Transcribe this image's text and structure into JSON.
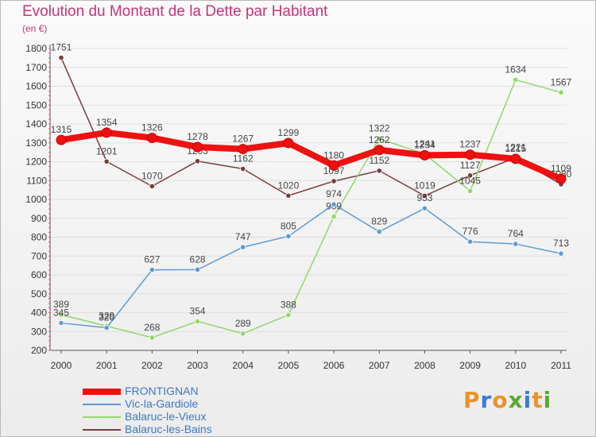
{
  "header": {
    "title": "Evolution du Montant de la Dette par Habitant",
    "subtitle": "(en €)"
  },
  "logo": {
    "text": "Proxiti"
  },
  "colors": {
    "title": "#c8337a",
    "legend_text": "#3b78c2",
    "grid": "#e0e0e0",
    "axis": "#555555"
  },
  "chart_data": {
    "type": "line",
    "title": "Evolution du Montant de la Dette par Habitant",
    "subtitle": "(en €)",
    "xlabel": "",
    "ylabel": "",
    "x": [
      "2000",
      "2001",
      "2002",
      "2003",
      "2004",
      "2005",
      "2006",
      "2007",
      "2008",
      "2009",
      "2010",
      "2011"
    ],
    "ylim": [
      200,
      1800
    ],
    "yticks": [
      "200",
      "300",
      "400",
      "500",
      "600",
      "700",
      "800",
      "900",
      "1000",
      "1100",
      "1200",
      "1300",
      "1400",
      "1500",
      "1600",
      "1700",
      "1800"
    ],
    "grid": "horizontal",
    "legend_position": "bottom-left",
    "series": [
      {
        "name": "FRONTIGNAN",
        "color": "#ee1111",
        "values": [
          1315,
          1354,
          1326,
          1278,
          1267,
          1299,
          1180,
          1262,
          1234,
          1237,
          1215,
          1109
        ],
        "labels": [
          "1315",
          "1354",
          "1326",
          "1278",
          "1267",
          "1299",
          "1180",
          "1262",
          "1234",
          "1237",
          "1215",
          "1109"
        ]
      },
      {
        "name": "Vic-la-Gardiole",
        "color": "#5b9bd5",
        "values": [
          345,
          320,
          627,
          628,
          747,
          805,
          974,
          829,
          953,
          776,
          764,
          713
        ],
        "labels": [
          "345",
          "320",
          "627",
          "628",
          "747",
          "805",
          "974",
          "829",
          "953",
          "776",
          "764",
          "713"
        ]
      },
      {
        "name": "Balaruc-le-Vieux",
        "color": "#8fd86a",
        "values": [
          389,
          329,
          268,
          354,
          289,
          388,
          909,
          1322,
          1241,
          1045,
          1634,
          1567
        ],
        "labels": [
          "389",
          "329",
          "268",
          "354",
          "289",
          "388",
          "909",
          "1322",
          "1241",
          "1045",
          "1634",
          "1567"
        ]
      },
      {
        "name": "Balaruc-les-Bains",
        "color": "#7a3c3c",
        "values": [
          1751,
          1201,
          1070,
          1203,
          1162,
          1020,
          1097,
          1152,
          1019,
          1127,
          1221,
          1080
        ],
        "labels": [
          "1751",
          "1201",
          "1070",
          "1203",
          "1162",
          "1020",
          "1097",
          "1152",
          "1019",
          "1127",
          "1221",
          "1080"
        ]
      }
    ]
  }
}
